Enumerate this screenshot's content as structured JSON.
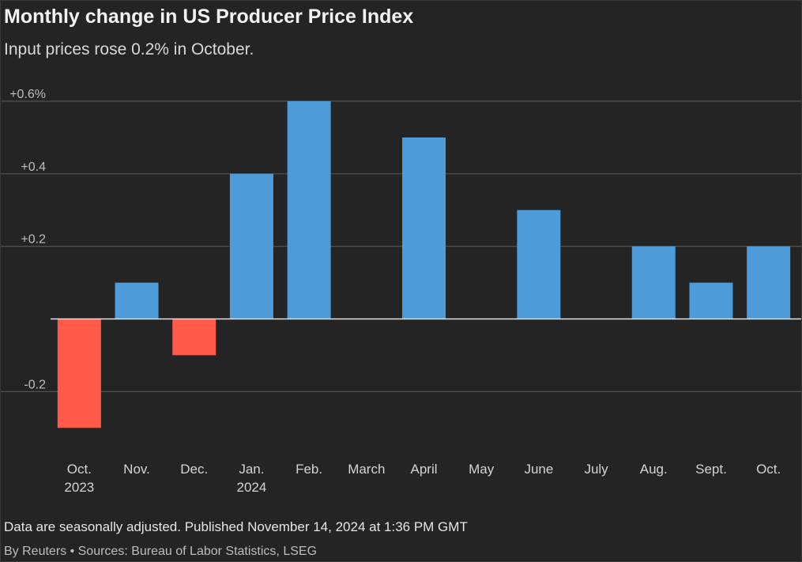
{
  "chart_data": {
    "type": "bar",
    "title": "Monthly change in US Producer Price Index",
    "subtitle": "Input prices rose 0.2% in October.",
    "xlabel": "",
    "ylabel": "",
    "ylim": [
      -0.3,
      0.6
    ],
    "grid": true,
    "legend": "none",
    "y_ticks": [
      {
        "value": 0.6,
        "label": "+0.6%"
      },
      {
        "value": 0.4,
        "label": "+0.4"
      },
      {
        "value": 0.2,
        "label": "+0.2"
      },
      {
        "value": -0.2,
        "label": "-0.2"
      }
    ],
    "categories": [
      {
        "label": "Oct.",
        "sublabel": "2023"
      },
      {
        "label": "Nov.",
        "sublabel": ""
      },
      {
        "label": "Dec.",
        "sublabel": ""
      },
      {
        "label": "Jan.",
        "sublabel": "2024"
      },
      {
        "label": "Feb.",
        "sublabel": ""
      },
      {
        "label": "March",
        "sublabel": ""
      },
      {
        "label": "April",
        "sublabel": ""
      },
      {
        "label": "May",
        "sublabel": ""
      },
      {
        "label": "June",
        "sublabel": ""
      },
      {
        "label": "July",
        "sublabel": ""
      },
      {
        "label": "Aug.",
        "sublabel": ""
      },
      {
        "label": "Sept.",
        "sublabel": ""
      },
      {
        "label": "Oct.",
        "sublabel": ""
      }
    ],
    "values": [
      -0.3,
      0.1,
      -0.1,
      0.4,
      0.6,
      0.0,
      0.5,
      0.0,
      0.3,
      0.0,
      0.2,
      0.1,
      0.2
    ],
    "colors": {
      "positive": "#4e9bd9",
      "negative": "#ff5a4a",
      "grid": "#5a5a5a",
      "baseline": "#e0e0e0",
      "tick_text": "#bdbdbd",
      "category_text": "#d4d4d4"
    }
  },
  "footer": {
    "note": "Data are seasonally adjusted. Published November 14, 2024 at 1:36 PM GMT",
    "credit": "By Reuters • Sources: Bureau of Labor Statistics, LSEG"
  }
}
